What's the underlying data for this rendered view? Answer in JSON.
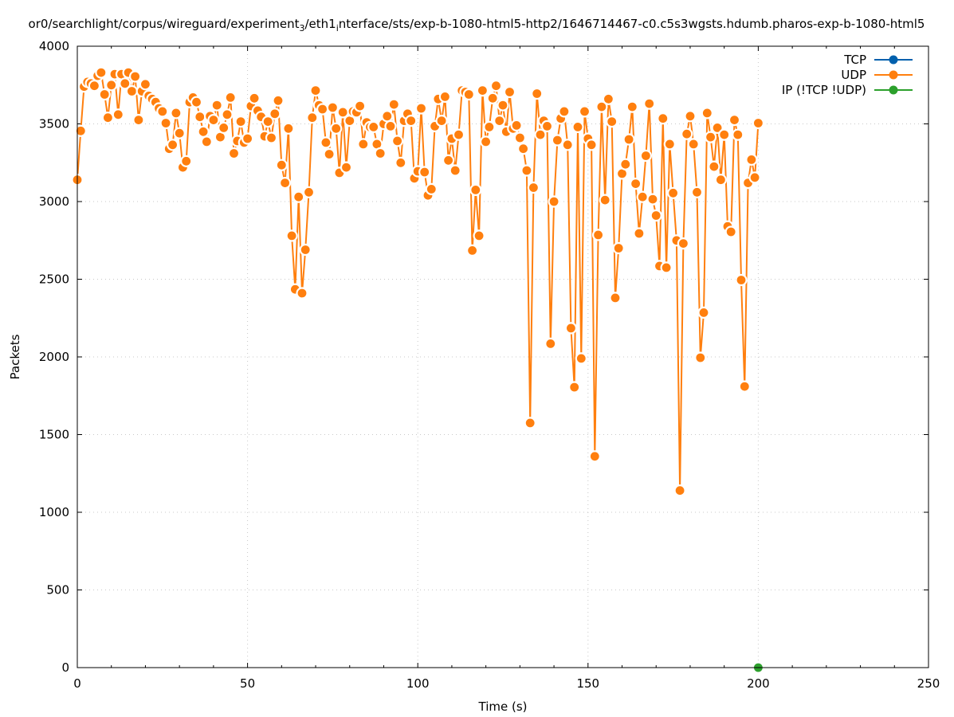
{
  "chart_data": {
    "type": "line",
    "title_parts": [
      "or0/searchlight/corpus/wireguard/experiment",
      "3",
      "/eth1",
      "i",
      "nterface/sts/exp-b-1080-html5-http2/1646714467-c0.c5s3wgsts.hdumb.pharos-exp-b-1080-html5"
    ],
    "xlabel": "Time (s)",
    "ylabel": "Packets",
    "xlim": [
      0,
      250
    ],
    "ylim": [
      0,
      4000
    ],
    "xticks": [
      0,
      50,
      100,
      150,
      200,
      250
    ],
    "yticks": [
      0,
      500,
      1000,
      1500,
      2000,
      2500,
      3000,
      3500,
      4000
    ],
    "grid": true,
    "legend_position": "top-right",
    "series": [
      {
        "name": "TCP",
        "color": "#0060ad",
        "x": [],
        "y": []
      },
      {
        "name": "UDP",
        "color": "#ff7f0e",
        "x": [
          0,
          1,
          2,
          3,
          4,
          5,
          6,
          7,
          8,
          9,
          10,
          11,
          12,
          13,
          14,
          15,
          16,
          17,
          18,
          19,
          20,
          21,
          22,
          23,
          24,
          25,
          26,
          27,
          28,
          29,
          30,
          31,
          32,
          33,
          34,
          35,
          36,
          37,
          38,
          39,
          40,
          41,
          42,
          43,
          44,
          45,
          46,
          47,
          48,
          49,
          50,
          51,
          52,
          53,
          54,
          55,
          56,
          57,
          58,
          59,
          60,
          61,
          62,
          63,
          64,
          65,
          66,
          67,
          68,
          69,
          70,
          71,
          72,
          73,
          74,
          75,
          76,
          77,
          78,
          79,
          80,
          81,
          82,
          83,
          84,
          85,
          86,
          87,
          88,
          89,
          90,
          91,
          92,
          93,
          94,
          95,
          96,
          97,
          98,
          99,
          100,
          101,
          102,
          103,
          104,
          105,
          106,
          107,
          108,
          109,
          110,
          111,
          112,
          113,
          114,
          115,
          116,
          117,
          118,
          119,
          120,
          121,
          122,
          123,
          124,
          125,
          126,
          127,
          128,
          129,
          130,
          131,
          132,
          133,
          134,
          135,
          136,
          137,
          138,
          139,
          140,
          141,
          142,
          143,
          144,
          145,
          146,
          147,
          148,
          149,
          150,
          151,
          152,
          153,
          154,
          155,
          156,
          157,
          158,
          159,
          160,
          161,
          162,
          163,
          164,
          165,
          166,
          167,
          168,
          169,
          170,
          171,
          172,
          173,
          174,
          175,
          176,
          177,
          178,
          179,
          180,
          181,
          182,
          183,
          184,
          185,
          186,
          187,
          188,
          189,
          190,
          191,
          192,
          193,
          194,
          195,
          196,
          197,
          198,
          199,
          200
        ],
        "y": [
          3140,
          3455,
          3740,
          3770,
          3760,
          3745,
          3810,
          3830,
          3690,
          3540,
          3750,
          3820,
          3560,
          3820,
          3760,
          3830,
          3710,
          3805,
          3525,
          3710,
          3755,
          3680,
          3660,
          3640,
          3600,
          3580,
          3505,
          3340,
          3365,
          3570,
          3440,
          3220,
          3260,
          3640,
          3670,
          3640,
          3545,
          3450,
          3385,
          3550,
          3525,
          3620,
          3415,
          3475,
          3560,
          3670,
          3310,
          3390,
          3515,
          3380,
          3405,
          3615,
          3665,
          3585,
          3545,
          3420,
          3515,
          3410,
          3565,
          3650,
          3235,
          3120,
          3470,
          2780,
          2435,
          3030,
          2410,
          2690,
          3060,
          3540,
          3715,
          3620,
          3595,
          3380,
          3305,
          3605,
          3470,
          3185,
          3575,
          3220,
          3520,
          3580,
          3575,
          3615,
          3370,
          3510,
          3480,
          3480,
          3370,
          3310,
          3500,
          3550,
          3485,
          3625,
          3390,
          3250,
          3520,
          3565,
          3520,
          3150,
          3195,
          3600,
          3190,
          3040,
          3080,
          3485,
          3660,
          3520,
          3675,
          3265,
          3405,
          3200,
          3430,
          3715,
          3705,
          3690,
          2685,
          3075,
          2780,
          3715,
          3385,
          3480,
          3665,
          3745,
          3520,
          3620,
          3450,
          3705,
          3470,
          3490,
          3410,
          3340,
          3200,
          1575,
          3090,
          3695,
          3430,
          3520,
          3485,
          2085,
          3000,
          3395,
          3535,
          3580,
          3365,
          2185,
          1805,
          3480,
          1990,
          3580,
          3405,
          3365,
          1360,
          2785,
          3610,
          3010,
          3660,
          3515,
          2380,
          2700,
          3180,
          3240,
          3400,
          3610,
          3115,
          2795,
          3030,
          3295,
          3630,
          3015,
          2910,
          2585,
          3535,
          2575,
          3370,
          3055,
          2750,
          1140,
          2730,
          3435,
          3550,
          3370,
          3060,
          1995,
          2285,
          3570,
          3415,
          3225,
          3475,
          3140,
          3430,
          2840,
          2805,
          3525,
          3430,
          2495,
          1810,
          3120,
          3270,
          3155,
          3505
        ]
      },
      {
        "name": "IP (!TCP  !UDP)",
        "color": "#2ca02c",
        "x": [
          200
        ],
        "y": [
          0
        ]
      }
    ]
  }
}
